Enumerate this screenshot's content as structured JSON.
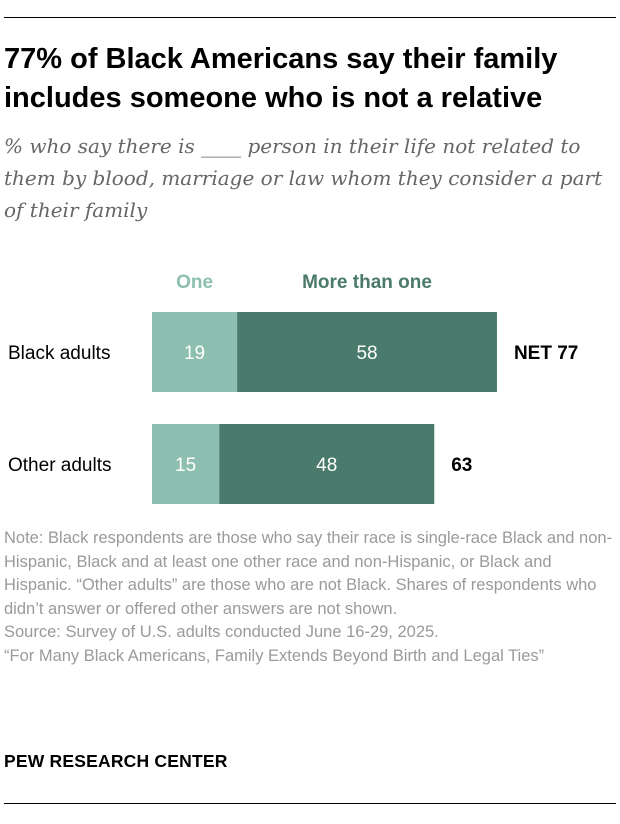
{
  "title": "77% of Black Americans say their family includes someone who is not a relative",
  "subtitle": "% who say there is ____ person in their life not related to them by blood, marriage or law whom they consider a part of their family",
  "chart_data": {
    "type": "bar",
    "orientation": "horizontal",
    "stacked": true,
    "categories": [
      "Black adults",
      "Other adults"
    ],
    "series": [
      {
        "name": "One",
        "values": [
          19,
          15
        ],
        "color": "#8cbfb0"
      },
      {
        "name": "More than one",
        "values": [
          58,
          48
        ],
        "color": "#4a7a6c"
      }
    ],
    "totals": [
      "NET 77",
      "63"
    ],
    "xlim": [
      0,
      100
    ],
    "legend": "top",
    "grid": false
  },
  "note": "Note: Black respondents are those who say their race is single-race Black and non-Hispanic, Black and at least one other race and non-Hispanic, or Black and Hispanic. “Other adults” are those who are not Black. Shares of respondents who didn’t answer or offered other answers are not shown.",
  "source": "Source: Survey of U.S. adults conducted June 16-29, 2025.",
  "report": "“For Many Black Americans, Family Extends Beyond Birth and Legal Ties”",
  "organization": "PEW RESEARCH CENTER"
}
